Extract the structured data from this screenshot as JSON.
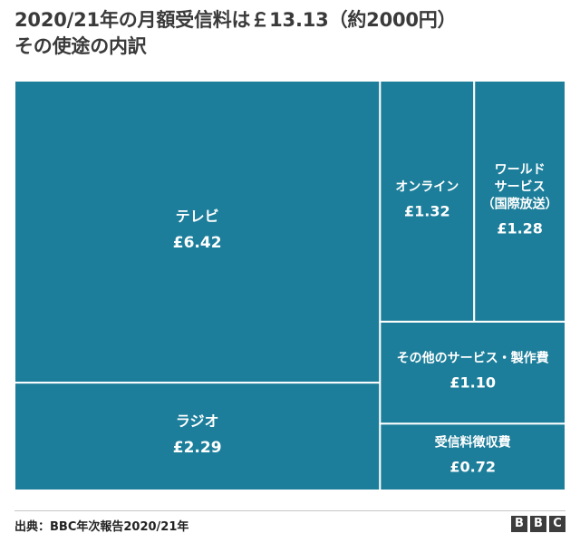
{
  "title_lines": [
    "2020/21年の月額受信料は￡13.13（約2000円）",
    "その使途の内訳"
  ],
  "source": "出典：BBC年次報告2020/21年",
  "logo": [
    "B",
    "B",
    "C"
  ],
  "colors": {
    "tile": "#1C7E9A",
    "border": "#ffffff",
    "label": "#ffffff"
  },
  "chart_data": {
    "type": "treemap",
    "title": "2020/21年の月額受信料は￡13.13（約2000円） その使途の内訳",
    "currency": "£",
    "total": 13.13,
    "items": [
      {
        "name": "テレビ",
        "value": 6.42,
        "value_label": "£6.42"
      },
      {
        "name": "ラジオ",
        "value": 2.29,
        "value_label": "£2.29"
      },
      {
        "name": "オンライン",
        "value": 1.32,
        "value_label": "£1.32"
      },
      {
        "name": "ワールドサービス（国際放送）",
        "name_lines": [
          "ワールド",
          "サービス",
          "（国際放送）"
        ],
        "value": 1.28,
        "value_label": "£1.28"
      },
      {
        "name": "その他のサービス・製作費",
        "value": 1.1,
        "value_label": "£1.10"
      },
      {
        "name": "受信料徴収費",
        "value": 0.72,
        "value_label": "£0.72"
      }
    ]
  }
}
